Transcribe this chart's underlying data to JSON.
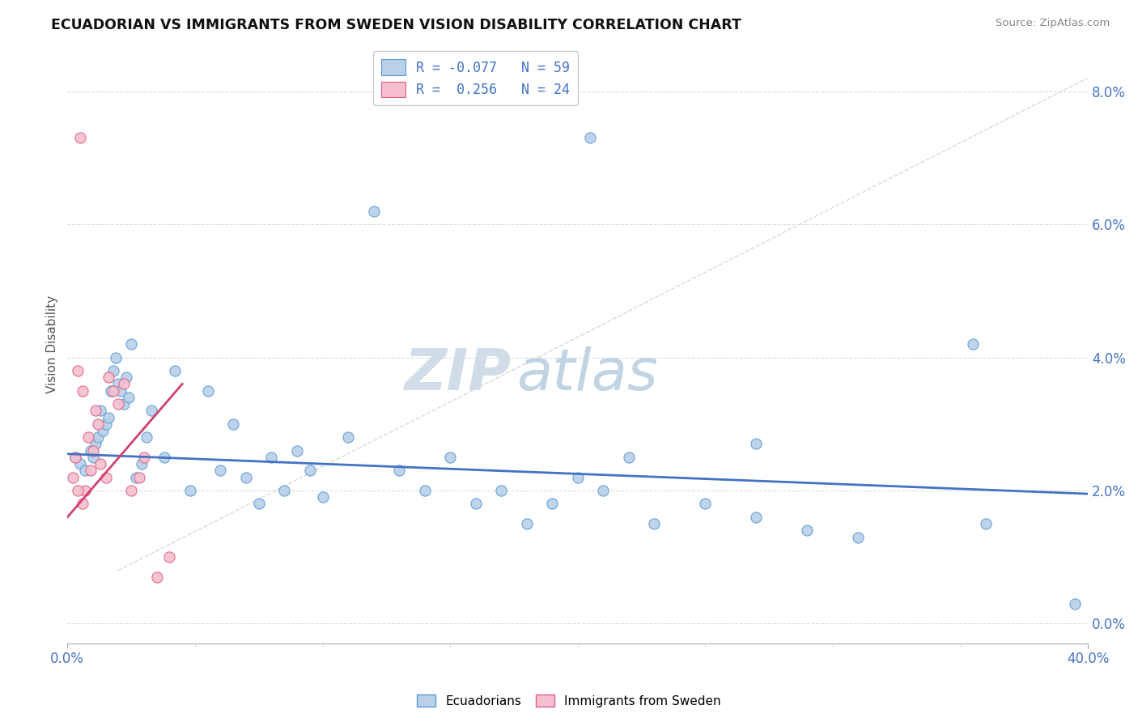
{
  "title": "ECUADORIAN VS IMMIGRANTS FROM SWEDEN VISION DISABILITY CORRELATION CHART",
  "source": "Source: ZipAtlas.com",
  "ylabel": "Vision Disability",
  "ytick_vals": [
    0.0,
    2.0,
    4.0,
    6.0,
    8.0
  ],
  "xmin": 0.0,
  "xmax": 40.0,
  "ymin": -0.3,
  "ymax": 8.7,
  "blue_R": -0.077,
  "blue_N": 59,
  "pink_R": 0.256,
  "pink_N": 24,
  "blue_color": "#b8d0e8",
  "pink_color": "#f5bfcf",
  "blue_edge_color": "#5b9bd5",
  "pink_edge_color": "#e06080",
  "blue_line_color": "#4472c4",
  "pink_line_color": "#d04070",
  "trendline_dash_color": "#c8c8c8",
  "blue_scatter_x": [
    0.3,
    0.5,
    0.7,
    0.9,
    1.0,
    1.1,
    1.2,
    1.3,
    1.4,
    1.5,
    1.6,
    1.7,
    1.8,
    1.9,
    2.0,
    2.1,
    2.2,
    2.3,
    2.4,
    2.5,
    2.7,
    2.9,
    3.1,
    3.3,
    3.8,
    4.2,
    4.8,
    5.5,
    6.0,
    6.5,
    7.0,
    7.5,
    8.0,
    8.5,
    9.0,
    9.5,
    10.0,
    11.0,
    12.0,
    13.0,
    14.0,
    15.0,
    16.0,
    17.0,
    18.0,
    19.0,
    20.0,
    21.0,
    22.0,
    23.0,
    25.0,
    27.0,
    29.0,
    31.0,
    35.5,
    36.0,
    27.0,
    39.5,
    20.5
  ],
  "blue_scatter_y": [
    2.5,
    2.4,
    2.3,
    2.6,
    2.5,
    2.7,
    2.8,
    3.2,
    2.9,
    3.0,
    3.1,
    3.5,
    3.8,
    4.0,
    3.6,
    3.5,
    3.3,
    3.7,
    3.4,
    4.2,
    2.2,
    2.4,
    2.8,
    3.2,
    2.5,
    3.8,
    2.0,
    3.5,
    2.3,
    3.0,
    2.2,
    1.8,
    2.5,
    2.0,
    2.6,
    2.3,
    1.9,
    2.8,
    6.2,
    2.3,
    2.0,
    2.5,
    1.8,
    2.0,
    1.5,
    1.8,
    2.2,
    2.0,
    2.5,
    1.5,
    1.8,
    1.6,
    1.4,
    1.3,
    4.2,
    1.5,
    2.7,
    0.3,
    7.3
  ],
  "pink_scatter_x": [
    0.2,
    0.3,
    0.4,
    0.5,
    0.6,
    0.7,
    0.8,
    0.9,
    1.0,
    1.1,
    1.2,
    1.3,
    1.5,
    1.6,
    1.8,
    2.0,
    2.2,
    2.5,
    2.8,
    3.0,
    3.5,
    4.0,
    0.4,
    0.6
  ],
  "pink_scatter_y": [
    2.2,
    2.5,
    3.8,
    7.3,
    3.5,
    2.0,
    2.8,
    2.3,
    2.6,
    3.2,
    3.0,
    2.4,
    2.2,
    3.7,
    3.5,
    3.3,
    3.6,
    2.0,
    2.2,
    2.5,
    0.7,
    1.0,
    2.0,
    1.8
  ],
  "blue_trendline_x": [
    0.0,
    40.0
  ],
  "blue_trendline_y": [
    2.55,
    1.95
  ],
  "pink_trendline_x": [
    0.0,
    4.5
  ],
  "pink_trendline_y": [
    1.6,
    3.6
  ],
  "dash_trendline_x": [
    2.0,
    40.0
  ],
  "dash_trendline_y": [
    0.8,
    8.2
  ]
}
